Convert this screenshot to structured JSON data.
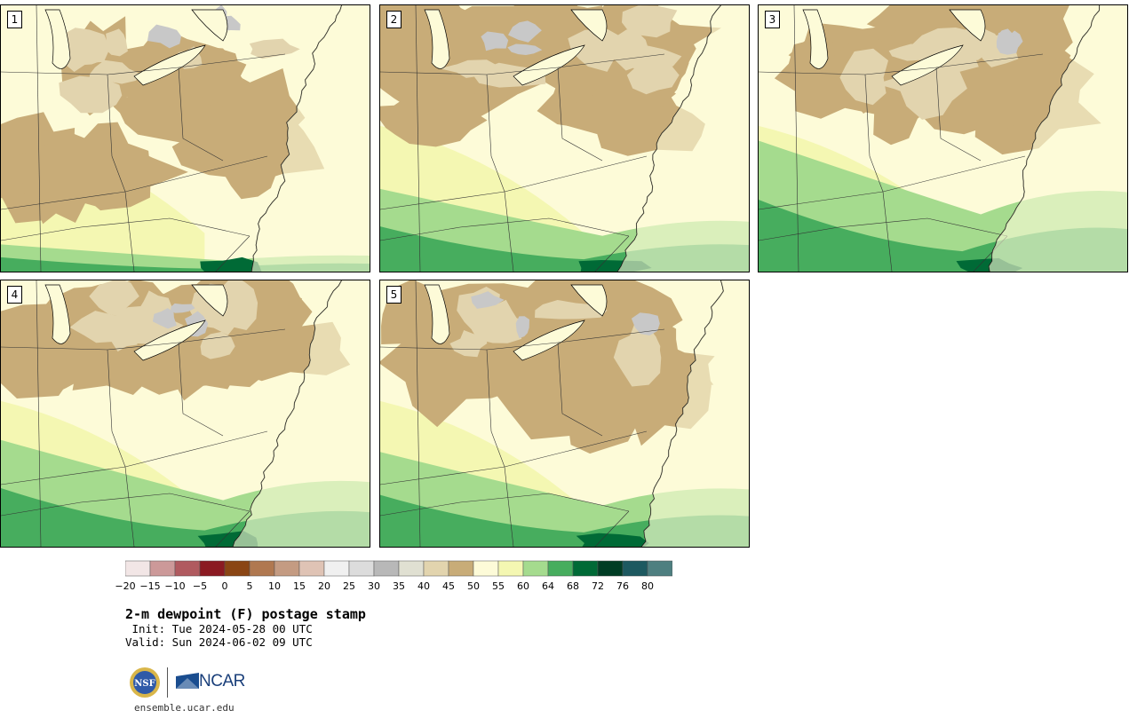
{
  "panels": [
    {
      "label": "1",
      "dryness": 0.62,
      "green": 0.12
    },
    {
      "label": "2",
      "dryness": 0.5,
      "green": 0.35
    },
    {
      "label": "3",
      "dryness": 0.4,
      "green": 0.55
    },
    {
      "label": "4",
      "dryness": 0.35,
      "green": 0.45
    },
    {
      "label": "5",
      "dryness": 0.48,
      "green": 0.4
    }
  ],
  "colorbar": {
    "colors": [
      "#f2e6e6",
      "#cc9999",
      "#b05a5f",
      "#8b1a22",
      "#8a4514",
      "#b07850",
      "#c49b82",
      "#dfc3b5",
      "#f0f0f0",
      "#dcdcdc",
      "#b8b8b8",
      "#e0e0d2",
      "#e2d4ae",
      "#c8ac78",
      "#fdfbd8",
      "#f4f7b2",
      "#a5db8e",
      "#47ad5e",
      "#006a36",
      "#003d24",
      "#1d5960",
      "#4e7f80"
    ],
    "ticks": [
      "−20",
      "−15",
      "−10",
      "−5",
      "0",
      "5",
      "10",
      "15",
      "20",
      "25",
      "30",
      "35",
      "40",
      "45",
      "50",
      "55",
      "60",
      "64",
      "68",
      "72",
      "76",
      "80"
    ]
  },
  "title": "2-m dewpoint (F) postage stamp",
  "init": " Init: Tue 2024-05-28 00 UTC",
  "valid": "Valid: Sun 2024-06-02 09 UTC",
  "logo": {
    "nsf": "NSF",
    "ncar": "NCAR"
  },
  "site": "ensemble.ucar.edu"
}
